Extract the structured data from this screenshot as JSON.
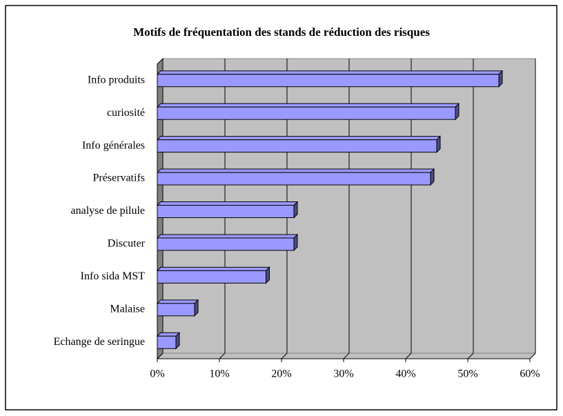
{
  "chart_data": {
    "type": "bar",
    "orientation": "horizontal",
    "title": "Motifs de fréquentation des stands de réduction des risques",
    "categories": [
      "Info produits",
      "curiosité",
      "Info générales",
      "Préservatifs",
      "analyse de pilule",
      "Discuter",
      "Info sida  MST",
      "Malaise",
      "Echange de seringue"
    ],
    "values": [
      55,
      48,
      45,
      44,
      22,
      22,
      17.5,
      6,
      3
    ],
    "color": "#9999ff",
    "xlim": [
      0,
      60
    ],
    "xticks": [
      {
        "value": 0,
        "label": "0%"
      },
      {
        "value": 10,
        "label": "10%"
      },
      {
        "value": 20,
        "label": "20%"
      },
      {
        "value": 30,
        "label": "30%"
      },
      {
        "value": 40,
        "label": "40%"
      },
      {
        "value": 50,
        "label": "50%"
      },
      {
        "value": 60,
        "label": "60%"
      }
    ],
    "grid": true
  }
}
